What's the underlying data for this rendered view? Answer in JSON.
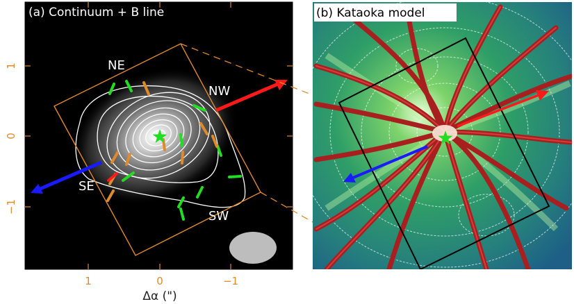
{
  "panel_a": {
    "title": "(a) Continuum + B line",
    "labels": {
      "ne": "NE",
      "nw": "NW",
      "se": "SE",
      "sw": "SW"
    },
    "x_axis_label": "Δα (\")",
    "x_ticks": [
      "1",
      "0",
      "−1"
    ],
    "y_ticks": [
      "1",
      "0",
      "−1"
    ]
  },
  "panel_b": {
    "title": "(b) Kataoka model"
  },
  "colors": {
    "orange": "#e08a2e",
    "green": "#22dd22",
    "red": "#ff1a1a",
    "blue": "#1a1aff",
    "beam": "#bdbdbd"
  }
}
